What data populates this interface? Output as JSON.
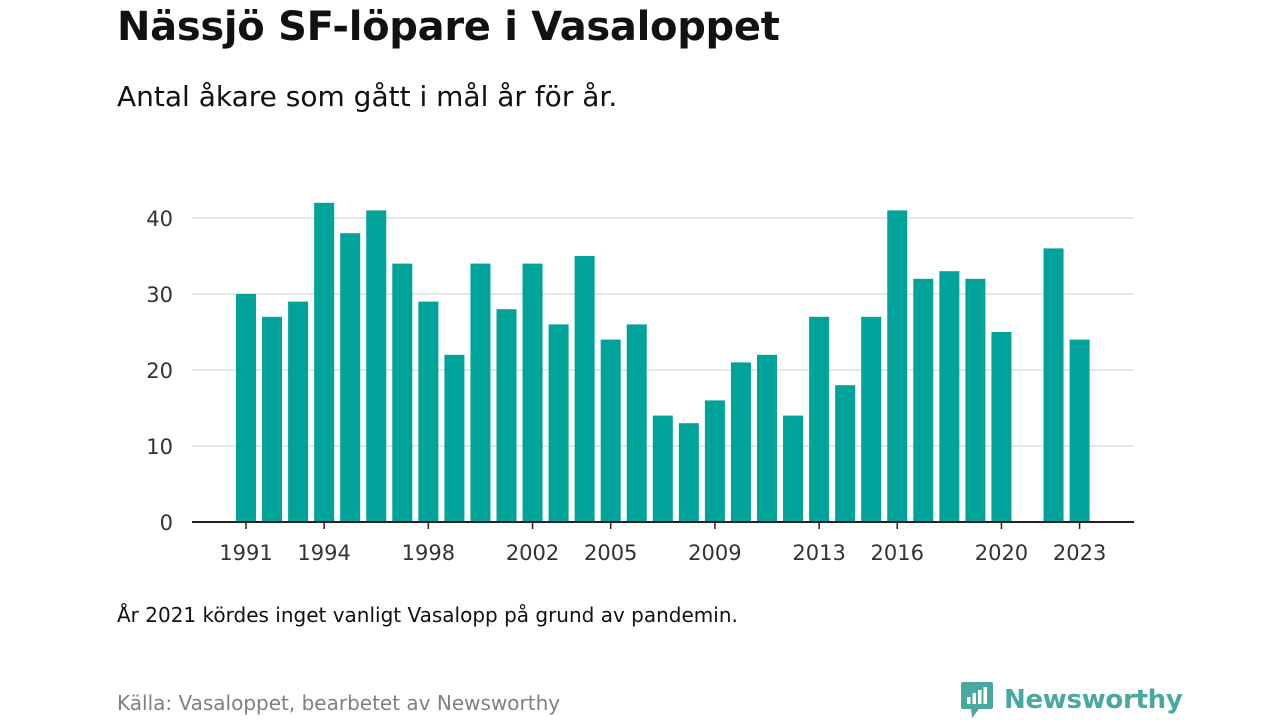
{
  "header": {
    "title": "Nässjö SF-löpare i Vasaloppet",
    "subtitle": "Antal åkare som gått i mål år för år."
  },
  "note": "År 2021 kördes inget vanligt Vasalopp på grund av pandemin.",
  "source": "Källa: Vasaloppet, bearbetet av Newsworthy",
  "brand": {
    "name": "Newsworthy",
    "icon": "newsworthy-logo-icon",
    "color": "#49a8a0"
  },
  "colors": {
    "bar": "#00a39a",
    "grid": "#dddddd",
    "axis": "#222222",
    "tick_text": "#333333"
  },
  "chart_data": {
    "type": "bar",
    "x": [
      1991,
      1992,
      1993,
      1994,
      1995,
      1996,
      1997,
      1998,
      1999,
      2000,
      2001,
      2002,
      2003,
      2004,
      2005,
      2006,
      2007,
      2008,
      2009,
      2010,
      2011,
      2012,
      2013,
      2014,
      2015,
      2016,
      2017,
      2018,
      2019,
      2020,
      2021,
      2022,
      2023
    ],
    "values": [
      30,
      27,
      29,
      42,
      38,
      41,
      34,
      29,
      22,
      34,
      28,
      34,
      26,
      35,
      24,
      26,
      14,
      13,
      16,
      21,
      22,
      14,
      27,
      18,
      27,
      41,
      32,
      33,
      32,
      25,
      null,
      36,
      24
    ],
    "x_tick_labels": [
      "1991",
      "1994",
      "1998",
      "2002",
      "2005",
      "2009",
      "2013",
      "2016",
      "2020",
      "2023"
    ],
    "y_ticks": [
      0,
      10,
      20,
      30,
      40
    ],
    "ylim": [
      0,
      44
    ],
    "grid": true,
    "xlabel": "",
    "ylabel": ""
  }
}
